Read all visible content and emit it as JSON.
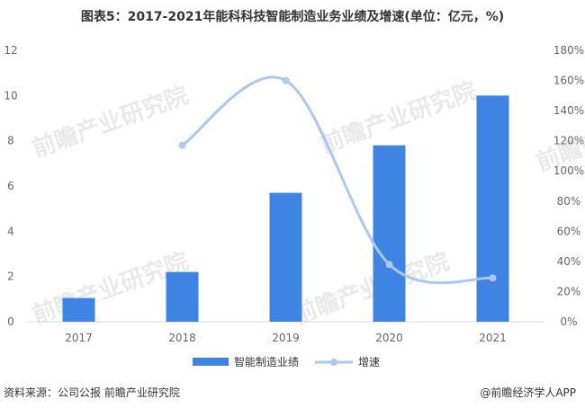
{
  "title": "图表5：2017-2021年能科科技智能制造业务业绩及增速(单位：亿元，%)",
  "watermark": "前瞻产业研究院",
  "footer": {
    "source": "资料来源：公司公报 前瞻产业研究院",
    "brand": "@前瞻经济学人APP"
  },
  "colors": {
    "bar": "#3f83e3",
    "line": "#a9c8f2",
    "axis": "#d9d9d9"
  },
  "chart_data": {
    "type": "bar",
    "categories": [
      "2017",
      "2018",
      "2019",
      "2020",
      "2021"
    ],
    "series": [
      {
        "name": "智能制造业绩",
        "type": "bar",
        "axis": "left",
        "values": [
          1.05,
          2.2,
          5.7,
          7.8,
          10.0
        ]
      },
      {
        "name": "增速",
        "type": "line",
        "axis": "right",
        "values": [
          null,
          117,
          160,
          38,
          29
        ]
      }
    ],
    "yticks_left": [
      "0",
      "2",
      "4",
      "6",
      "8",
      "10",
      "12"
    ],
    "yticks_right": [
      "0%",
      "20%",
      "40%",
      "60%",
      "80%",
      "100%",
      "120%",
      "140%",
      "160%",
      "180%"
    ],
    "ylim_left": [
      0,
      12
    ],
    "ylim_right": [
      0,
      180
    ],
    "legend_position": "bottom"
  }
}
